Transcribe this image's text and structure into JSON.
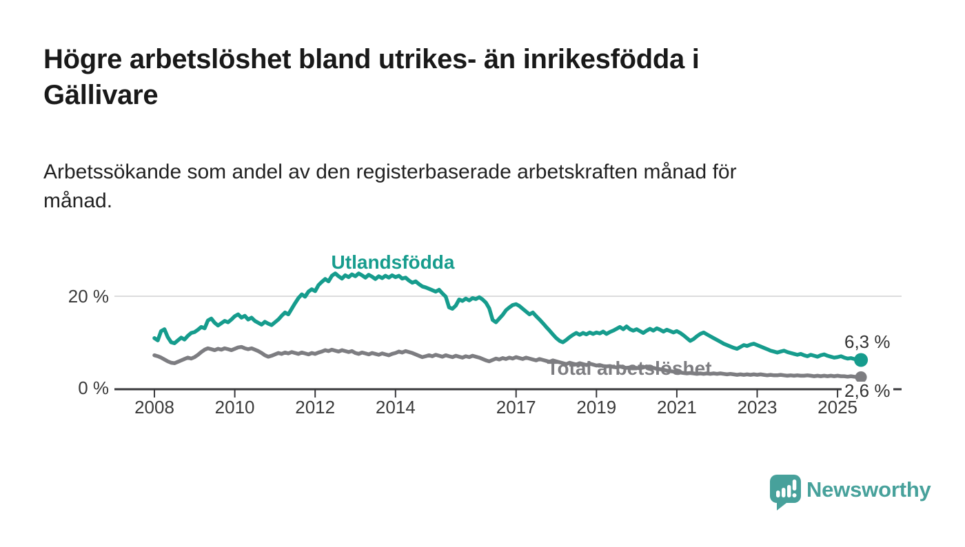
{
  "header": {
    "title": "Högre arbetslöshet bland utrikes- än inrikesfödda i Gällivare",
    "title_lines": [
      "Högre arbetslöshet bland utrikes- än inrikesfödda i",
      "Gällivare"
    ],
    "subtitle": "Arbetssökande som andel av den registerbaserade arbetskraften månad för månad.",
    "subtitle_lines": [
      "Arbetssökande som andel av den registerbaserade arbetskraften månad för",
      "månad."
    ]
  },
  "chart_data": {
    "type": "line",
    "title": "Högre arbetslöshet bland utrikes- än inrikesfödda i Gällivare",
    "subtitle": "Arbetssökande som andel av den registerbaserade arbetskraften månad för månad.",
    "x_unit": "month",
    "x_start": "2008-01",
    "x_end": "2025-08",
    "x_tick_years": [
      2008,
      2010,
      2012,
      2014,
      2017,
      2019,
      2021,
      2023,
      2025
    ],
    "x_tick_labels": [
      "2008",
      "2010",
      "2012",
      "2014",
      "2017",
      "2019",
      "2021",
      "2023",
      "2025"
    ],
    "y_axis": {
      "tick_labels": [
        "0 %",
        "20 %"
      ],
      "tick_values": [
        0,
        20
      ],
      "ylim": [
        0,
        27
      ],
      "gridlines": [
        20
      ]
    },
    "axis_color": "#38383b",
    "grid_color": "#dcdcdd",
    "tick_label_color": "#3a3a3a",
    "legend_position": "inline-on-line",
    "series": [
      {
        "name": "Utlandsfödda",
        "color": "#169c8d",
        "end_label": "6,3 %",
        "last_value": 6.3,
        "values": [
          11.0,
          10.5,
          12.5,
          12.9,
          11.2,
          10.1,
          9.9,
          10.5,
          11.1,
          10.7,
          11.5,
          12.1,
          12.3,
          12.8,
          13.4,
          13.1,
          14.8,
          15.2,
          14.3,
          13.7,
          14.2,
          14.7,
          14.4,
          15.0,
          15.7,
          16.1,
          15.4,
          15.8,
          15.0,
          15.4,
          14.7,
          14.3,
          13.9,
          14.5,
          14.1,
          13.8,
          14.4,
          15.0,
          15.8,
          16.5,
          16.1,
          17.3,
          18.5,
          19.6,
          20.4,
          19.9,
          21.0,
          21.5,
          21.1,
          22.4,
          23.1,
          23.7,
          23.2,
          24.4,
          24.9,
          24.3,
          23.8,
          24.5,
          24.1,
          24.7,
          24.3,
          24.9,
          24.5,
          24.0,
          24.6,
          24.2,
          23.7,
          24.3,
          23.9,
          24.4,
          24.0,
          24.5,
          24.1,
          24.4,
          23.8,
          24.0,
          23.4,
          22.9,
          23.2,
          22.6,
          22.1,
          21.9,
          21.6,
          21.3,
          21.0,
          21.4,
          20.6,
          19.9,
          17.6,
          17.3,
          18.0,
          19.3,
          19.0,
          19.5,
          19.1,
          19.6,
          19.4,
          19.8,
          19.3,
          18.6,
          17.4,
          14.9,
          14.4,
          15.2,
          16.0,
          17.0,
          17.6,
          18.1,
          18.3,
          17.9,
          17.3,
          16.7,
          16.1,
          16.5,
          15.7,
          15.0,
          14.2,
          13.4,
          12.6,
          11.8,
          11.0,
          10.4,
          10.1,
          10.6,
          11.2,
          11.7,
          12.1,
          11.7,
          12.1,
          11.8,
          12.2,
          11.9,
          12.2,
          12.0,
          12.4,
          11.9,
          12.3,
          12.6,
          13.0,
          13.4,
          12.9,
          13.5,
          12.9,
          12.6,
          12.9,
          12.5,
          12.1,
          12.6,
          13.0,
          12.6,
          13.1,
          12.8,
          12.4,
          12.8,
          12.5,
          12.2,
          12.5,
          12.1,
          11.6,
          11.0,
          10.4,
          10.8,
          11.4,
          11.9,
          12.2,
          11.8,
          11.4,
          11.0,
          10.6,
          10.2,
          9.8,
          9.5,
          9.2,
          8.9,
          8.7,
          9.1,
          9.5,
          9.3,
          9.6,
          9.8,
          9.5,
          9.2,
          8.9,
          8.6,
          8.3,
          8.1,
          7.9,
          8.1,
          8.3,
          8.0,
          7.8,
          7.6,
          7.4,
          7.6,
          7.3,
          7.1,
          7.4,
          7.2,
          7.0,
          7.3,
          7.5,
          7.2,
          7.0,
          6.8,
          6.9,
          7.1,
          6.8,
          6.6,
          6.7,
          6.5,
          6.3,
          6.3
        ]
      },
      {
        "name": "Total arbetslöshet",
        "color": "#7d7d81",
        "end_label": "2,6 %",
        "last_value": 2.6,
        "values": [
          7.3,
          7.1,
          6.8,
          6.4,
          6.0,
          5.7,
          5.6,
          5.9,
          6.2,
          6.5,
          6.8,
          6.6,
          6.9,
          7.4,
          8.0,
          8.5,
          8.8,
          8.6,
          8.4,
          8.7,
          8.5,
          8.8,
          8.6,
          8.4,
          8.7,
          9.0,
          9.1,
          8.8,
          8.6,
          8.8,
          8.5,
          8.2,
          7.8,
          7.3,
          7.0,
          7.2,
          7.5,
          7.8,
          7.6,
          7.9,
          7.7,
          8.0,
          7.8,
          7.6,
          7.9,
          7.7,
          7.5,
          7.8,
          7.6,
          7.9,
          8.1,
          8.4,
          8.2,
          8.5,
          8.3,
          8.1,
          8.4,
          8.2,
          8.0,
          8.2,
          7.8,
          7.6,
          7.9,
          7.7,
          7.5,
          7.8,
          7.6,
          7.4,
          7.7,
          7.5,
          7.3,
          7.6,
          7.8,
          8.1,
          7.9,
          8.2,
          8.0,
          7.8,
          7.5,
          7.2,
          6.9,
          7.1,
          7.3,
          7.1,
          7.4,
          7.2,
          7.0,
          7.3,
          7.1,
          6.9,
          7.2,
          7.0,
          6.8,
          7.1,
          6.9,
          7.2,
          7.0,
          6.8,
          6.5,
          6.2,
          6.0,
          6.3,
          6.6,
          6.4,
          6.7,
          6.5,
          6.8,
          6.6,
          6.9,
          6.7,
          6.5,
          6.8,
          6.6,
          6.4,
          6.2,
          6.5,
          6.3,
          6.1,
          5.9,
          6.2,
          6.0,
          5.8,
          5.6,
          5.4,
          5.7,
          5.5,
          5.3,
          5.6,
          5.4,
          5.2,
          5.5,
          5.3,
          5.1,
          5.2,
          5.0,
          4.9,
          5.0,
          4.8,
          4.7,
          4.9,
          4.7,
          4.6,
          4.7,
          4.5,
          4.6,
          4.5,
          4.7,
          4.9,
          4.7,
          4.6,
          4.4,
          4.3,
          4.2,
          4.0,
          3.9,
          3.8,
          3.7,
          3.6,
          3.5,
          3.4,
          3.5,
          3.4,
          3.3,
          3.4,
          3.3,
          3.4,
          3.3,
          3.4,
          3.3,
          3.4,
          3.3,
          3.2,
          3.3,
          3.2,
          3.1,
          3.2,
          3.1,
          3.2,
          3.1,
          3.2,
          3.1,
          3.2,
          3.1,
          3.0,
          3.1,
          3.0,
          3.0,
          3.1,
          3.0,
          2.9,
          3.0,
          2.9,
          3.0,
          2.9,
          2.9,
          3.0,
          2.9,
          2.8,
          2.9,
          2.8,
          2.9,
          2.8,
          2.9,
          2.8,
          2.9,
          2.8,
          2.8,
          2.7,
          2.8,
          2.7,
          2.6,
          2.6
        ]
      }
    ]
  },
  "footer": {
    "brand_name": "Newsworthy",
    "brand_color": "#47a19b",
    "logo_icon": "newsworthy-speech-bubble-barchart-icon"
  }
}
